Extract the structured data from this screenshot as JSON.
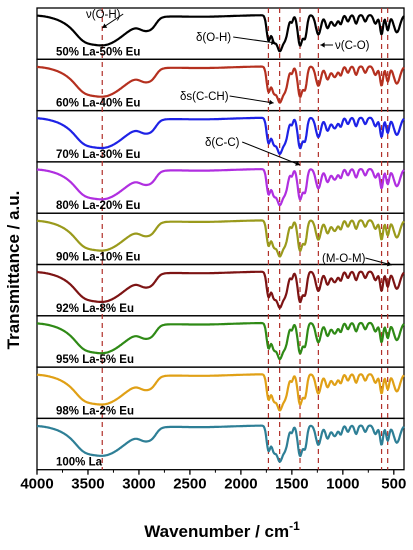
{
  "chart_data": {
    "type": "line",
    "stacked_panels": true,
    "x_reversed": true,
    "xlim": [
      4000,
      400
    ],
    "xlabel": "Wavenumber / cm",
    "xlabel_superscript": "-1",
    "ylabel": "Transmittance / a.u.",
    "x_ticks": [
      4000,
      3500,
      3000,
      2500,
      2000,
      1500,
      1000,
      500
    ],
    "x_tick_labels": [
      "4000",
      "3500",
      "3000",
      "2500",
      "2000",
      "1500",
      "1000",
      "500"
    ],
    "reference_lines": [
      3360,
      1730,
      1620,
      1420,
      1240,
      620,
      560
    ],
    "series": [
      {
        "name": "50% La-50% Eu",
        "color": "#000000"
      },
      {
        "name": "60% La-40% Eu",
        "color": "#b5301f"
      },
      {
        "name": "70% La-30% Eu",
        "color": "#1e22e6"
      },
      {
        "name": "80% La-20% Eu",
        "color": "#b02fe0"
      },
      {
        "name": "90% La-10% Eu",
        "color": "#9a9a1c"
      },
      {
        "name": "92% La-8% Eu",
        "color": "#7d1414"
      },
      {
        "name": "95% La-5% Eu",
        "color": "#2f8a16"
      },
      {
        "name": "98% La-2% Eu",
        "color": "#e0a016"
      },
      {
        "name": "100% La",
        "color": "#2e7f96"
      }
    ],
    "annotations": [
      {
        "text": "ν(O-H)",
        "target_x": 3360
      },
      {
        "text": "δ(O-H)",
        "target_x": 1620
      },
      {
        "text": "ν(C-O)",
        "target_x": 1240
      },
      {
        "text": "δs(C-CH)",
        "target_x": 1620
      },
      {
        "text": "δ(C-C)",
        "target_x": 1420
      },
      {
        "text": "(M-O-M)",
        "target_x": 560
      }
    ]
  }
}
